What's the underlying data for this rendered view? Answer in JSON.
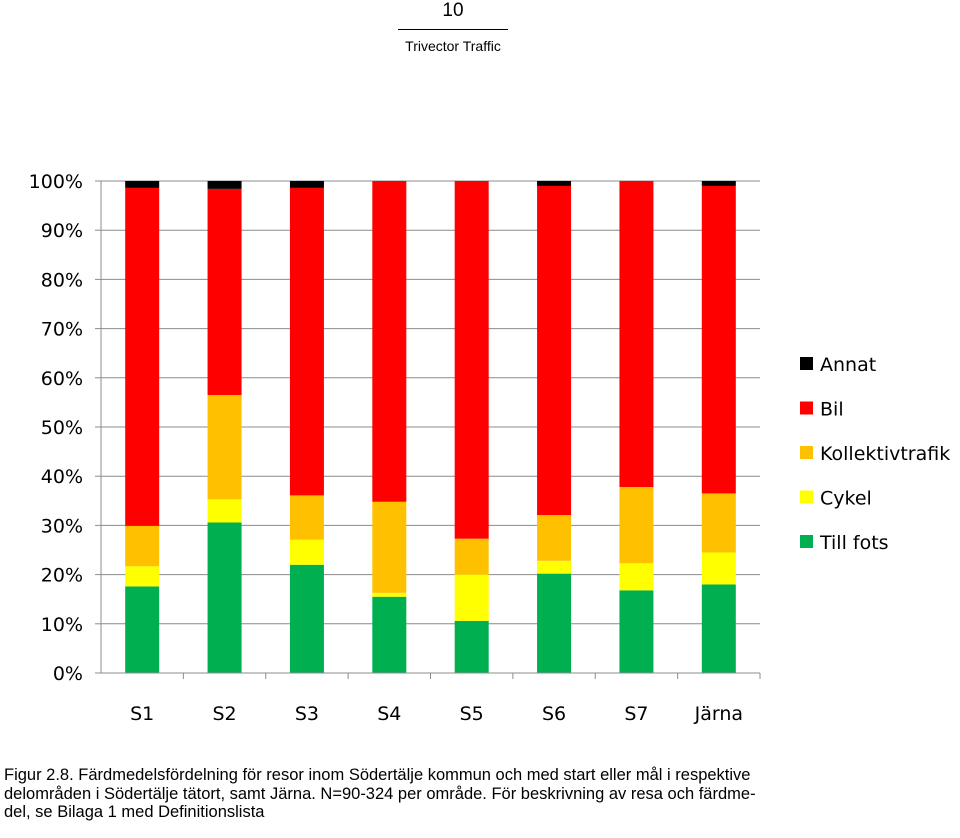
{
  "header": {
    "page_number": "10",
    "organization": "Trivector Traffic"
  },
  "caption": {
    "line1": "Figur 2.8. Färdmedelsfördelning för resor inom Södertälje kommun och med start eller mål i respektive",
    "line2": "delområden i Södertälje tätort, samt Järna. N=90-324 per område. För beskrivning av resa och färdme-",
    "line3": "del, se Bilaga 1 med Definitionslista"
  },
  "chart_data": {
    "type": "bar",
    "stacked": true,
    "percent": true,
    "categories": [
      "S1",
      "S2",
      "S3",
      "S4",
      "S5",
      "S6",
      "S7",
      "Järna"
    ],
    "y_ticks": [
      "0%",
      "10%",
      "20%",
      "30%",
      "40%",
      "50%",
      "60%",
      "70%",
      "80%",
      "90%",
      "100%"
    ],
    "ylim": [
      0,
      100
    ],
    "grid": true,
    "legend_position": "right",
    "series": [
      {
        "name": "Till fots",
        "color": "#00B050",
        "values": [
          17.6,
          30.6,
          22.0,
          15.5,
          10.6,
          20.2,
          16.8,
          18.0
        ]
      },
      {
        "name": "Cykel",
        "color": "#FFFF00",
        "values": [
          4.1,
          4.7,
          5.1,
          0.8,
          9.4,
          2.6,
          5.5,
          6.5
        ]
      },
      {
        "name": "Kollektivtrafik",
        "color": "#FFC000",
        "values": [
          8.2,
          21.2,
          9.0,
          18.5,
          7.3,
          9.3,
          15.5,
          12.0
        ]
      },
      {
        "name": "Bil",
        "color": "#FF0000",
        "values": [
          68.7,
          41.9,
          62.5,
          65.2,
          72.7,
          66.9,
          62.2,
          62.5
        ]
      },
      {
        "name": "Annat",
        "color": "#000000",
        "values": [
          1.4,
          1.6,
          1.4,
          0.0,
          0.0,
          1.0,
          0.0,
          1.0
        ]
      }
    ],
    "legend_order": [
      "Annat",
      "Bil",
      "Kollektivtrafik",
      "Cykel",
      "Till fots"
    ]
  }
}
